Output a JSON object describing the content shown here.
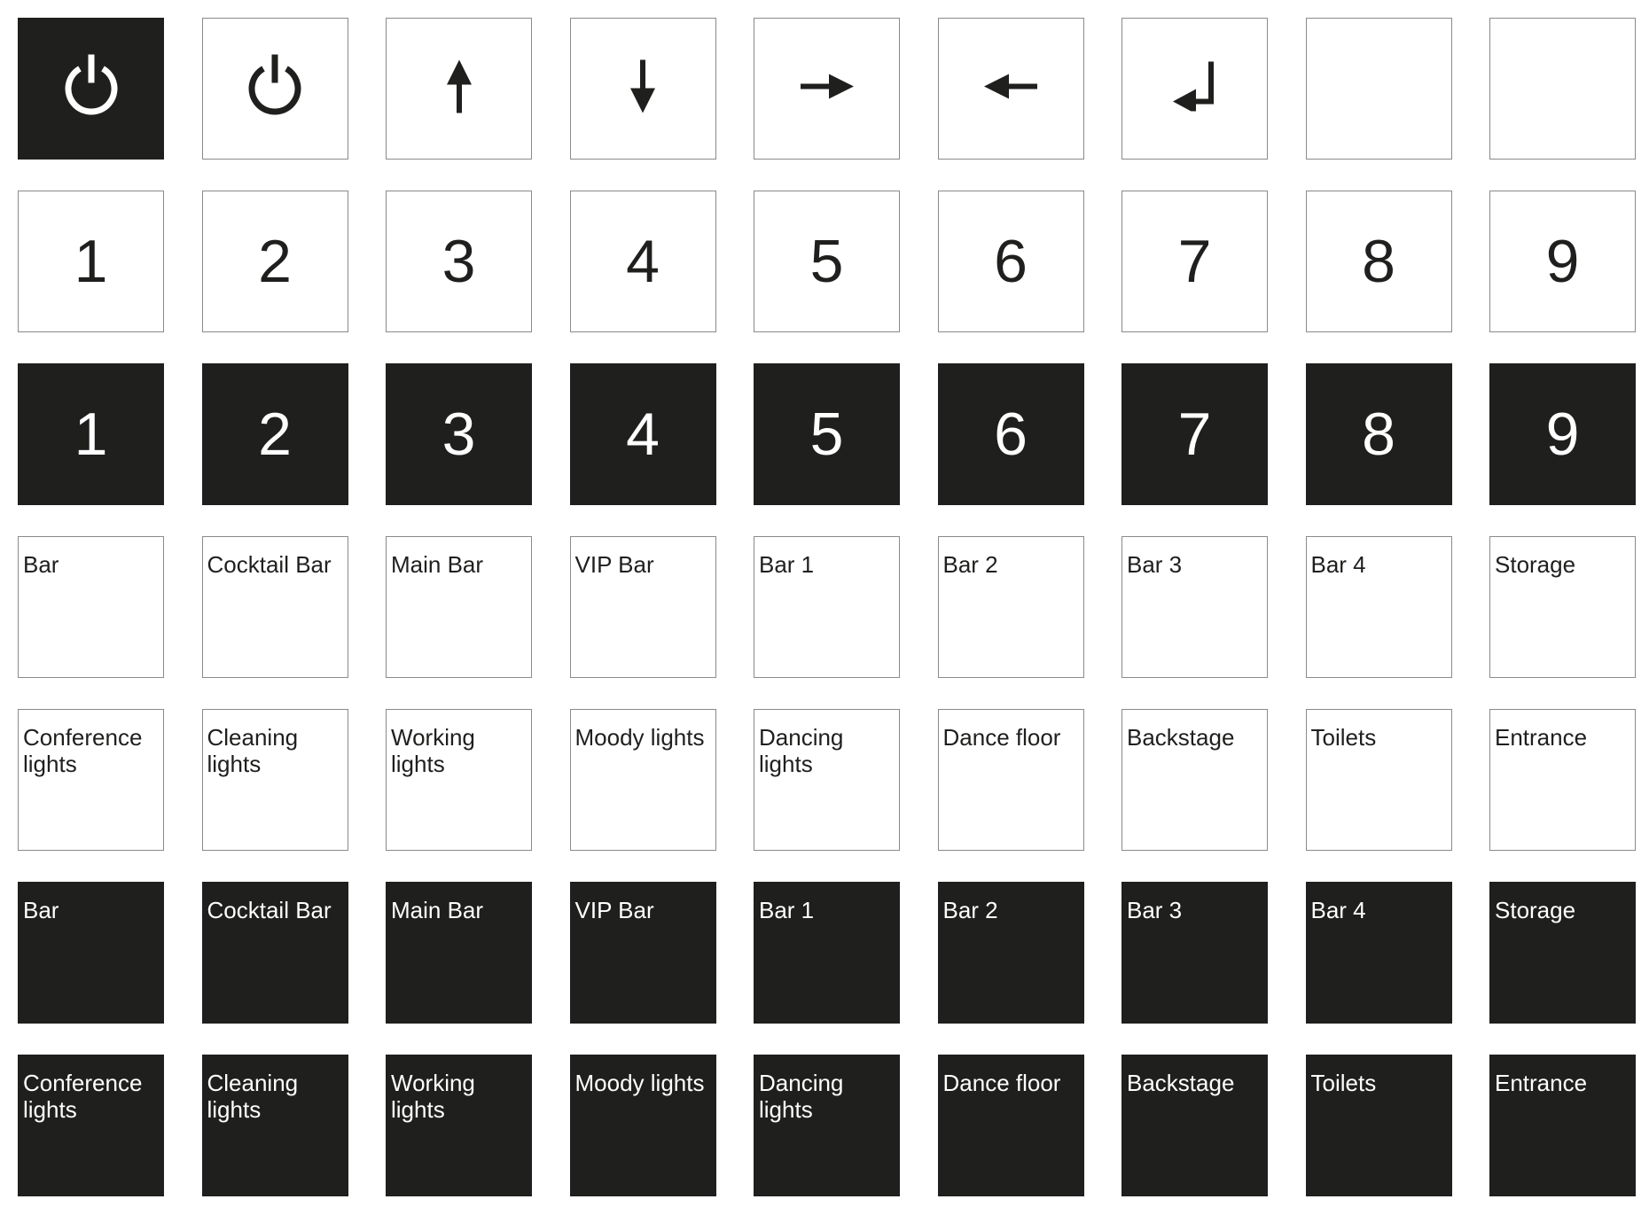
{
  "colors": {
    "dark": "#1f1f1e",
    "light": "#ffffff",
    "border": "#8a8a8a"
  },
  "rows": [
    {
      "style": "mixed",
      "tiles": [
        {
          "icon": "power-icon",
          "dark": true
        },
        {
          "icon": "power-icon",
          "dark": false
        },
        {
          "icon": "arrow-up-icon",
          "dark": false
        },
        {
          "icon": "arrow-down-icon",
          "dark": false
        },
        {
          "icon": "arrow-right-icon",
          "dark": false
        },
        {
          "icon": "arrow-left-icon",
          "dark": false
        },
        {
          "icon": "enter-icon",
          "dark": false
        },
        {
          "icon": "",
          "dark": false
        },
        {
          "icon": "",
          "dark": false
        }
      ]
    },
    {
      "style": "light-number",
      "tiles": [
        {
          "text": "1"
        },
        {
          "text": "2"
        },
        {
          "text": "3"
        },
        {
          "text": "4"
        },
        {
          "text": "5"
        },
        {
          "text": "6"
        },
        {
          "text": "7"
        },
        {
          "text": "8"
        },
        {
          "text": "9"
        }
      ]
    },
    {
      "style": "dark-number",
      "tiles": [
        {
          "text": "1"
        },
        {
          "text": "2"
        },
        {
          "text": "3"
        },
        {
          "text": "4"
        },
        {
          "text": "5"
        },
        {
          "text": "6"
        },
        {
          "text": "7"
        },
        {
          "text": "8"
        },
        {
          "text": "9"
        }
      ]
    },
    {
      "style": "light-label",
      "tiles": [
        {
          "text": "Bar"
        },
        {
          "text": "Cocktail Bar"
        },
        {
          "text": "Main Bar"
        },
        {
          "text": "VIP Bar"
        },
        {
          "text": "Bar 1"
        },
        {
          "text": "Bar 2"
        },
        {
          "text": "Bar 3"
        },
        {
          "text": "Bar 4"
        },
        {
          "text": "Storage"
        }
      ]
    },
    {
      "style": "light-label",
      "tiles": [
        {
          "text": "Conference lights"
        },
        {
          "text": "Cleaning lights"
        },
        {
          "text": "Working lights"
        },
        {
          "text": "Moody lights"
        },
        {
          "text": "Dancing lights"
        },
        {
          "text": "Dance floor"
        },
        {
          "text": "Backstage"
        },
        {
          "text": "Toilets"
        },
        {
          "text": "Entrance"
        }
      ]
    },
    {
      "style": "dark-label",
      "tiles": [
        {
          "text": "Bar"
        },
        {
          "text": "Cocktail Bar"
        },
        {
          "text": "Main Bar"
        },
        {
          "text": "VIP Bar"
        },
        {
          "text": "Bar 1"
        },
        {
          "text": "Bar 2"
        },
        {
          "text": "Bar 3"
        },
        {
          "text": "Bar 4"
        },
        {
          "text": "Storage"
        }
      ]
    },
    {
      "style": "dark-label",
      "tiles": [
        {
          "text": "Conference lights"
        },
        {
          "text": "Cleaning lights"
        },
        {
          "text": "Working lights"
        },
        {
          "text": "Moody lights"
        },
        {
          "text": "Dancing lights"
        },
        {
          "text": "Dance floor"
        },
        {
          "text": "Backstage"
        },
        {
          "text": "Toilets"
        },
        {
          "text": "Entrance"
        }
      ]
    }
  ]
}
